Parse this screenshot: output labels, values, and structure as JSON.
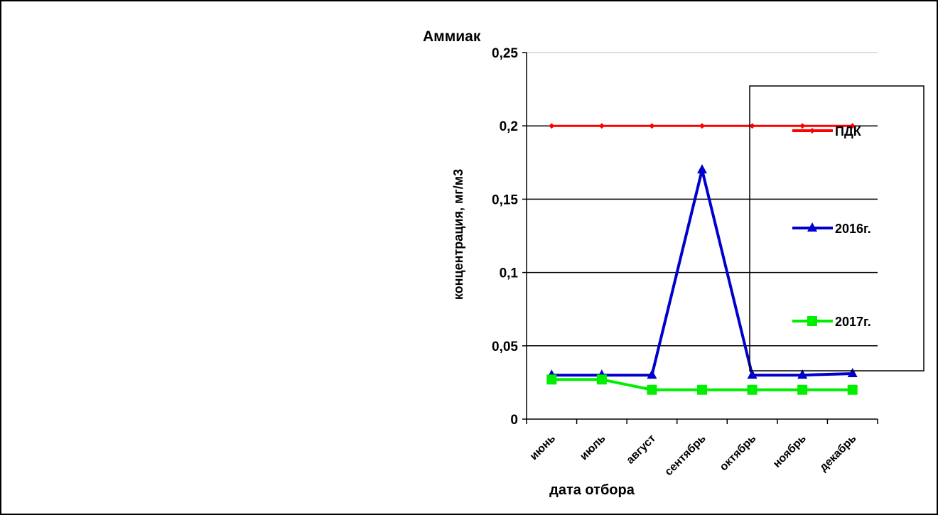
{
  "chart_data": {
    "type": "line",
    "title": "Аммиак",
    "xlabel": "дата отбора",
    "ylabel": "концентрация, мг/м3",
    "categories": [
      "июнь",
      "июль",
      "август",
      "сентябрь",
      "октябрь",
      "ноябрь",
      "декабрь"
    ],
    "ylim": [
      0,
      0.25
    ],
    "yticks": [
      0,
      0.05,
      0.1,
      0.15,
      0.2,
      0.25
    ],
    "ytick_labels": [
      "0",
      "0,05",
      "0,1",
      "0,15",
      "0,2",
      "0,25"
    ],
    "grid": true,
    "legend_position": "right",
    "series": [
      {
        "name": "ПДК",
        "color": "#ff0000",
        "marker": "diamond",
        "values": [
          0.2,
          0.2,
          0.2,
          0.2,
          0.2,
          0.2,
          0.2
        ]
      },
      {
        "name": "2016г.",
        "color": "#0000cc",
        "marker": "triangle",
        "values": [
          0.03,
          0.03,
          0.03,
          0.17,
          0.03,
          0.03,
          0.031
        ]
      },
      {
        "name": "2017г.",
        "color": "#00ee00",
        "marker": "square",
        "values": [
          0.027,
          0.027,
          0.02,
          0.02,
          0.02,
          0.02,
          0.02
        ]
      }
    ]
  }
}
